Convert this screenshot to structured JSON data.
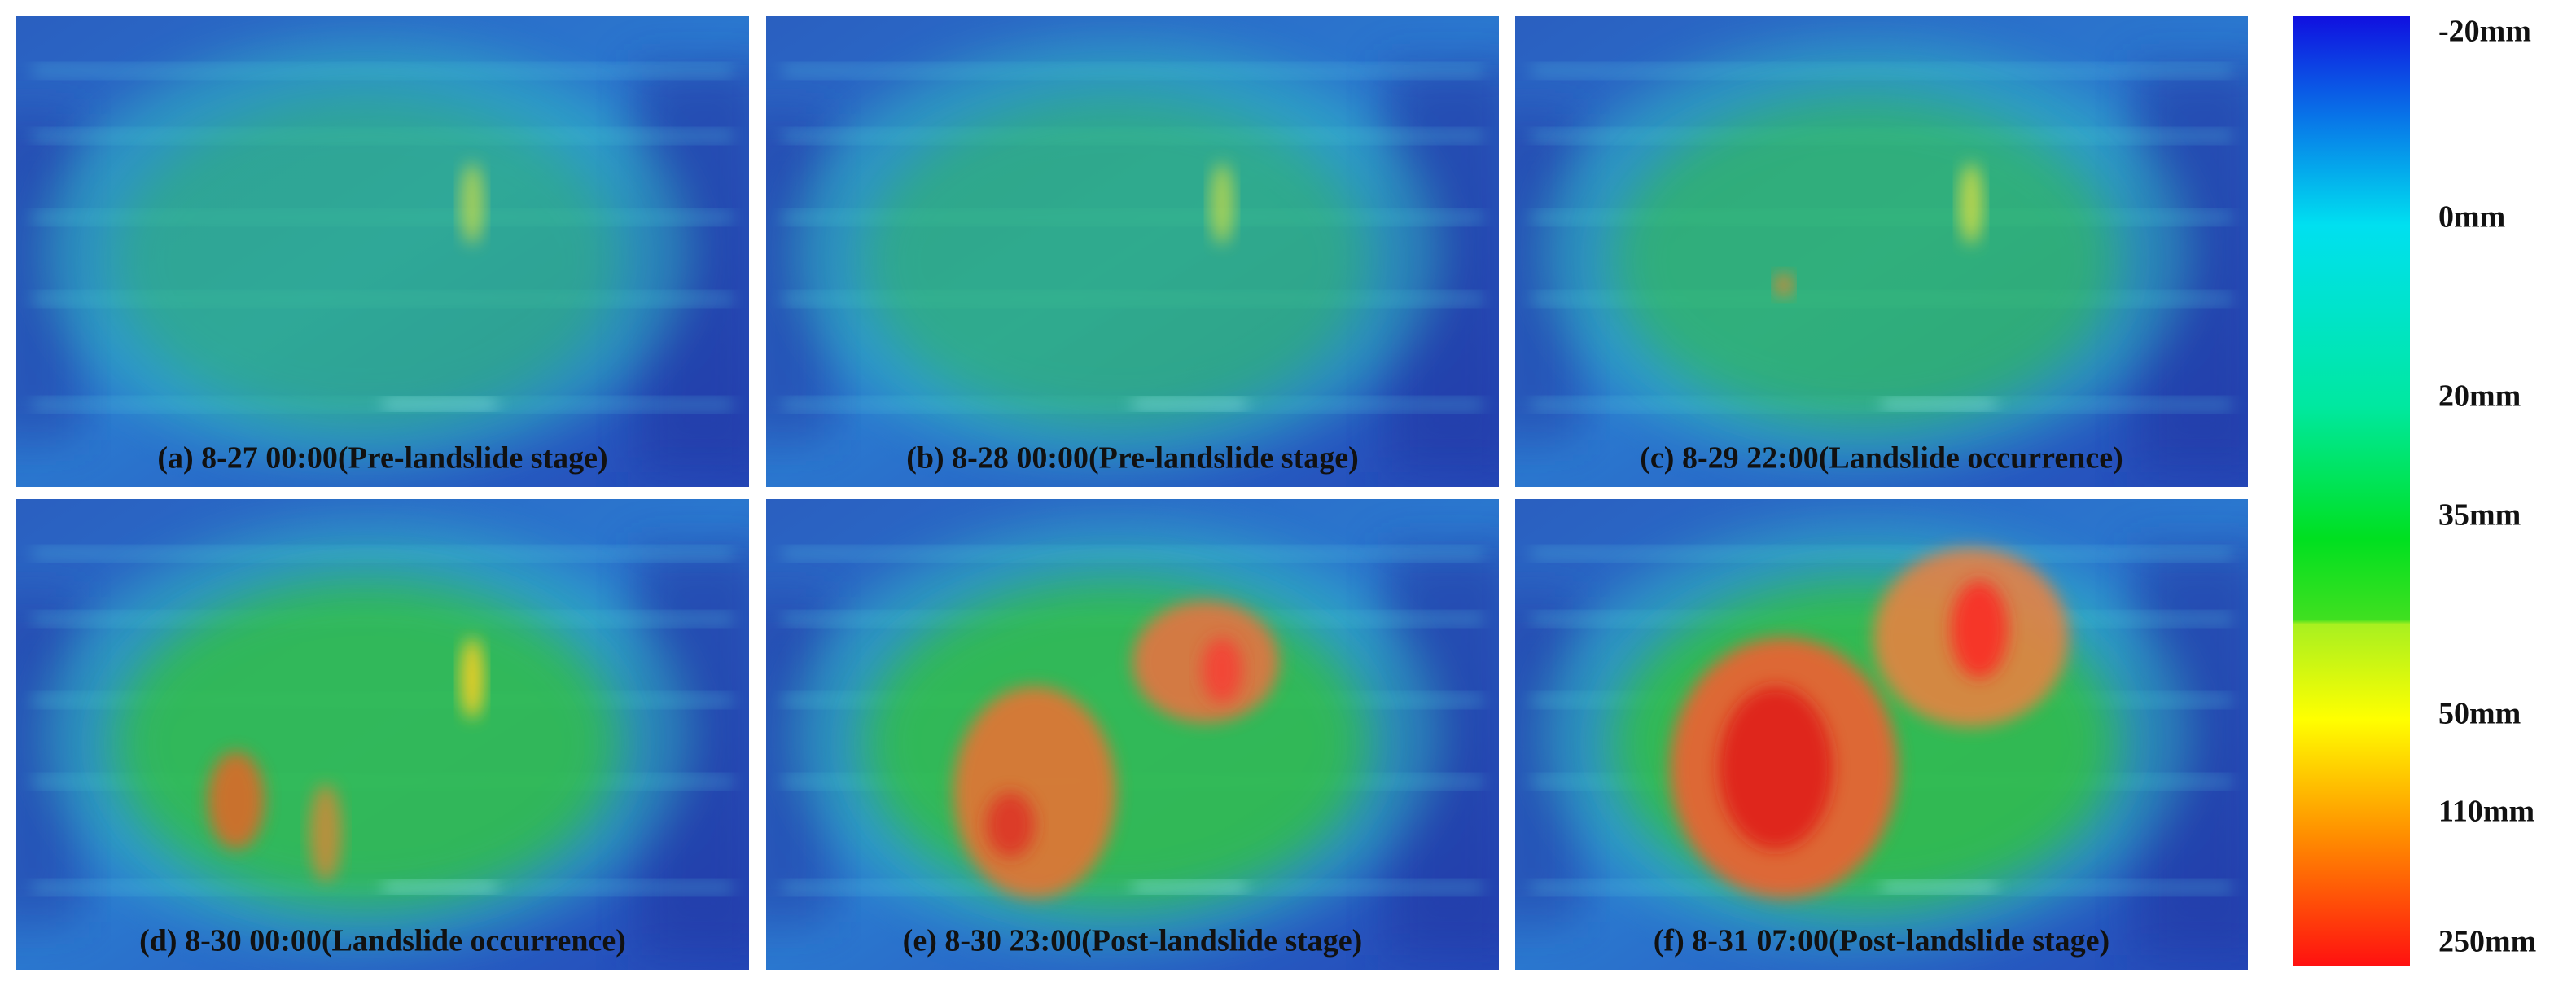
{
  "panels": [
    {
      "caption": "(a) 8-27 00:00(Pre-landslide stage)"
    },
    {
      "caption": "(b) 8-28 00:00(Pre-landslide stage)"
    },
    {
      "caption": "(c) 8-29 22:00(Landslide occurrence)"
    },
    {
      "caption": "(d) 8-30 00:00(Landslide occurrence)"
    },
    {
      "caption": "(e) 8-30 23:00(Post-landslide stage)"
    },
    {
      "caption": "(f) 8-31 07:00(Post-landslide stage)"
    }
  ],
  "colorbar": {
    "labels": [
      "-20mm",
      "0mm",
      "20mm",
      "35mm",
      "50mm",
      "110mm",
      "250mm"
    ]
  }
}
